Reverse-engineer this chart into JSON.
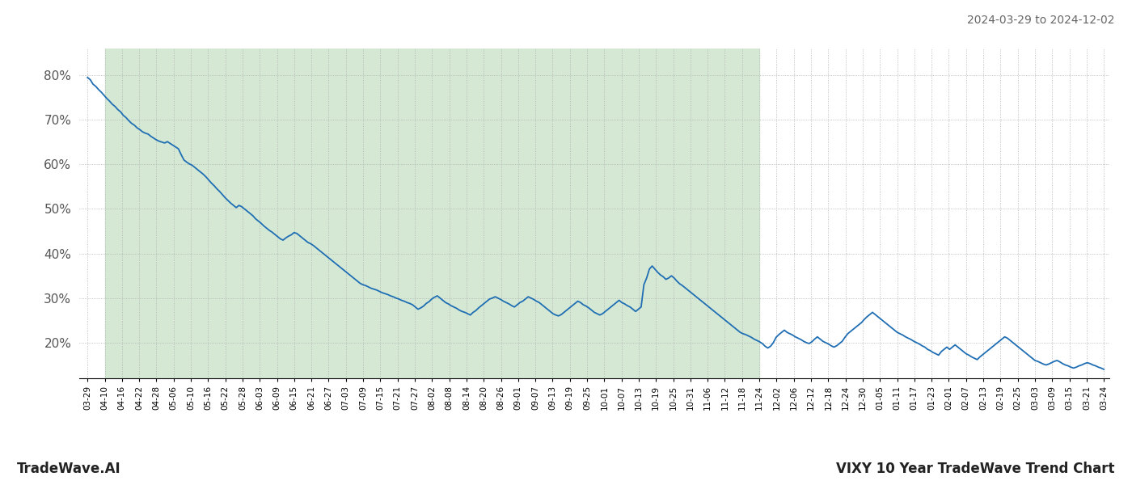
{
  "title_right": "2024-03-29 to 2024-12-02",
  "footer_left": "TradeWave.AI",
  "footer_right": "VIXY 10 Year TradeWave Trend Chart",
  "background_color": "#ffffff",
  "line_color": "#1f6eb4",
  "shaded_region_color": "#d4e8d4",
  "grid_color": "#b0b0b0",
  "grid_style": ":",
  "ylim": [
    12,
    86
  ],
  "yticks": [
    20,
    30,
    40,
    50,
    60,
    70,
    80
  ],
  "x_labels": [
    "03-29",
    "04-10",
    "04-16",
    "04-22",
    "04-28",
    "05-06",
    "05-10",
    "05-16",
    "05-22",
    "05-28",
    "06-03",
    "06-09",
    "06-15",
    "06-21",
    "06-27",
    "07-03",
    "07-09",
    "07-15",
    "07-21",
    "07-27",
    "08-02",
    "08-08",
    "08-14",
    "08-20",
    "08-26",
    "09-01",
    "09-07",
    "09-13",
    "09-19",
    "09-25",
    "10-01",
    "10-07",
    "10-13",
    "10-19",
    "10-25",
    "10-31",
    "11-06",
    "11-12",
    "11-18",
    "11-24",
    "12-02",
    "12-06",
    "12-12",
    "12-18",
    "12-24",
    "12-30",
    "01-05",
    "01-11",
    "01-17",
    "01-23",
    "02-01",
    "02-07",
    "02-13",
    "02-19",
    "02-25",
    "03-03",
    "03-09",
    "03-15",
    "03-21",
    "03-24"
  ],
  "shaded_start_label": "04-10",
  "shaded_end_label": "11-24",
  "y_values": [
    79.5,
    79.0,
    78.0,
    77.5,
    76.8,
    76.2,
    75.5,
    74.8,
    74.2,
    73.5,
    73.0,
    72.3,
    71.8,
    71.0,
    70.5,
    69.8,
    69.2,
    68.8,
    68.2,
    67.8,
    67.3,
    67.0,
    66.8,
    66.3,
    65.9,
    65.5,
    65.2,
    65.0,
    64.8,
    65.1,
    64.7,
    64.3,
    63.9,
    63.5,
    62.2,
    61.0,
    60.5,
    60.1,
    59.8,
    59.3,
    58.8,
    58.3,
    57.8,
    57.2,
    56.5,
    55.8,
    55.2,
    54.5,
    53.9,
    53.2,
    52.5,
    51.9,
    51.3,
    50.8,
    50.3,
    50.8,
    50.5,
    50.0,
    49.5,
    49.0,
    48.5,
    47.8,
    47.3,
    46.8,
    46.2,
    45.7,
    45.2,
    44.8,
    44.3,
    43.8,
    43.3,
    43.0,
    43.5,
    43.9,
    44.2,
    44.7,
    44.5,
    44.0,
    43.5,
    43.0,
    42.5,
    42.2,
    41.8,
    41.3,
    40.8,
    40.3,
    39.8,
    39.3,
    38.8,
    38.3,
    37.8,
    37.3,
    36.8,
    36.3,
    35.8,
    35.3,
    34.8,
    34.3,
    33.8,
    33.3,
    33.0,
    32.8,
    32.5,
    32.2,
    32.0,
    31.8,
    31.5,
    31.2,
    31.0,
    30.8,
    30.5,
    30.3,
    30.0,
    29.8,
    29.5,
    29.3,
    29.0,
    28.8,
    28.5,
    28.0,
    27.5,
    27.8,
    28.2,
    28.8,
    29.2,
    29.8,
    30.2,
    30.5,
    30.0,
    29.5,
    29.0,
    28.7,
    28.3,
    28.0,
    27.7,
    27.3,
    27.0,
    26.8,
    26.5,
    26.2,
    26.8,
    27.2,
    27.8,
    28.3,
    28.8,
    29.3,
    29.8,
    30.0,
    30.3,
    30.0,
    29.7,
    29.3,
    29.0,
    28.7,
    28.3,
    28.0,
    28.5,
    29.0,
    29.3,
    29.8,
    30.3,
    30.0,
    29.7,
    29.3,
    29.0,
    28.5,
    28.0,
    27.5,
    27.0,
    26.5,
    26.2,
    26.0,
    26.3,
    26.8,
    27.3,
    27.8,
    28.3,
    28.8,
    29.3,
    29.0,
    28.5,
    28.2,
    27.8,
    27.3,
    26.8,
    26.5,
    26.2,
    26.5,
    27.0,
    27.5,
    28.0,
    28.5,
    29.0,
    29.5,
    29.0,
    28.7,
    28.3,
    28.0,
    27.5,
    27.0,
    27.5,
    28.0,
    33.0,
    34.5,
    36.5,
    37.2,
    36.5,
    35.8,
    35.2,
    34.8,
    34.2,
    34.5,
    35.0,
    34.5,
    33.8,
    33.2,
    32.8,
    32.3,
    31.8,
    31.3,
    30.8,
    30.3,
    29.8,
    29.3,
    28.8,
    28.3,
    27.8,
    27.3,
    26.8,
    26.3,
    25.8,
    25.3,
    24.8,
    24.3,
    23.8,
    23.3,
    22.8,
    22.3,
    22.0,
    21.8,
    21.5,
    21.2,
    20.8,
    20.5,
    20.2,
    19.8,
    19.2,
    18.8,
    19.2,
    20.0,
    21.2,
    21.8,
    22.3,
    22.8,
    22.3,
    22.0,
    21.7,
    21.3,
    21.0,
    20.7,
    20.3,
    20.0,
    19.8,
    20.2,
    20.8,
    21.3,
    20.8,
    20.3,
    20.0,
    19.7,
    19.3,
    19.0,
    19.3,
    19.8,
    20.3,
    21.2,
    22.0,
    22.5,
    23.0,
    23.5,
    24.0,
    24.5,
    25.2,
    25.8,
    26.3,
    26.8,
    26.3,
    25.8,
    25.3,
    24.8,
    24.3,
    23.8,
    23.3,
    22.8,
    22.3,
    22.0,
    21.7,
    21.3,
    21.0,
    20.7,
    20.3,
    20.0,
    19.7,
    19.3,
    19.0,
    18.5,
    18.2,
    17.8,
    17.5,
    17.2,
    18.0,
    18.5,
    19.0,
    18.5,
    19.0,
    19.5,
    19.0,
    18.5,
    18.0,
    17.5,
    17.2,
    16.8,
    16.5,
    16.2,
    16.8,
    17.3,
    17.8,
    18.3,
    18.8,
    19.3,
    19.8,
    20.3,
    20.8,
    21.3,
    21.0,
    20.5,
    20.0,
    19.5,
    19.0,
    18.5,
    18.0,
    17.5,
    17.0,
    16.5,
    16.0,
    15.8,
    15.5,
    15.2,
    15.0,
    15.2,
    15.5,
    15.8,
    16.0,
    15.7,
    15.3,
    15.0,
    14.8,
    14.5,
    14.3,
    14.5,
    14.8,
    15.0,
    15.3,
    15.5,
    15.3,
    15.0,
    14.8,
    14.5,
    14.3,
    14.0
  ]
}
